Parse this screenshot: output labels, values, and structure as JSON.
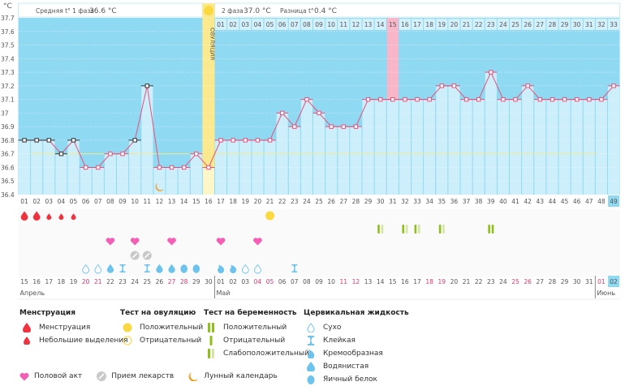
{
  "header": {
    "unit_label": "°C",
    "phase1_label": "Средняя t° 1 фаза",
    "phase1_value": "36.6 °C",
    "phase2_label": "2 фаза",
    "phase2_value": "37.0 °C",
    "diff_label": "Разница t°",
    "diff_value": "0.4 °C",
    "ovulation_label": "ОВУЛЯЦИЯ"
  },
  "colors": {
    "plot_bg": "#8fd9f3",
    "bar_fill": "#cdeefb",
    "line": "#e8507a",
    "cover_line": "#f5e98a",
    "ovulation_col": "#fbe98f",
    "highlight_col": "#f9b6c9",
    "today_col": "#8fd9f3",
    "weekend_red": "#e8356b"
  },
  "chart_data": {
    "type": "line",
    "title": "",
    "xlabel": "",
    "ylabel": "°C",
    "ylim": [
      36.4,
      37.7
    ],
    "y_ticks": [
      "37.7",
      "37.6",
      "37.5",
      "37.4",
      "37.3",
      "37.2",
      "37.1",
      "37",
      "36.9",
      "36.8",
      "36.7",
      "36.6",
      "36.5",
      "36.4"
    ],
    "cycle_days": [
      "01",
      "02",
      "03",
      "04",
      "05",
      "06",
      "07",
      "08",
      "09",
      "10",
      "11",
      "12",
      "13",
      "14",
      "15",
      "16",
      "17",
      "18",
      "19",
      "20",
      "21",
      "22",
      "23",
      "24",
      "25",
      "26",
      "27",
      "28",
      "29",
      "30",
      "31",
      "32",
      "33",
      "34",
      "35",
      "36",
      "37",
      "38",
      "39",
      "40",
      "41",
      "42",
      "43",
      "44",
      "45",
      "46",
      "47",
      "48",
      "49"
    ],
    "phase2_days": [
      "01",
      "02",
      "03",
      "04",
      "05",
      "06",
      "07",
      "08",
      "09",
      "10",
      "11",
      "12",
      "13",
      "14",
      "15",
      "16",
      "17",
      "18",
      "19",
      "20",
      "21",
      "22",
      "23",
      "24",
      "25",
      "26",
      "27",
      "28",
      "29",
      "30",
      "31",
      "32",
      "33"
    ],
    "series": [
      {
        "name": "Базальная температура",
        "values": [
          36.8,
          36.8,
          36.8,
          36.7,
          36.8,
          36.6,
          36.6,
          36.7,
          36.7,
          36.8,
          37.2,
          36.6,
          36.6,
          36.6,
          36.7,
          36.6,
          36.8,
          36.8,
          36.8,
          36.8,
          36.8,
          37.0,
          36.9,
          37.1,
          37.0,
          36.9,
          36.9,
          36.9,
          37.1,
          37.1,
          37.1,
          37.1,
          37.1,
          37.1,
          37.2,
          37.2,
          37.1,
          37.1,
          37.3,
          37.1,
          37.1,
          37.2,
          37.1,
          37.1,
          37.1,
          37.1,
          37.1,
          37.1,
          37.2
        ]
      }
    ],
    "disturbed_days": [
      1,
      2,
      3,
      4,
      5,
      10,
      11
    ],
    "cover_line": 36.7,
    "ovulation_day": 16,
    "highlight_day": 31,
    "today_day": 49,
    "calendar_dates": [
      "15",
      "16",
      "17",
      "18",
      "19",
      "20",
      "21",
      "22",
      "23",
      "24",
      "25",
      "26",
      "27",
      "28",
      "29",
      "30",
      "01",
      "02",
      "03",
      "04",
      "05",
      "06",
      "07",
      "08",
      "09",
      "10",
      "11",
      "12",
      "13",
      "14",
      "15",
      "16",
      "17",
      "18",
      "19",
      "20",
      "21",
      "22",
      "23",
      "24",
      "25",
      "26",
      "27",
      "28",
      "29",
      "30",
      "31",
      "01",
      "02"
    ],
    "red_dates_days": [
      6,
      7,
      13,
      14,
      20,
      21,
      27,
      28,
      34,
      35,
      41,
      42,
      48
    ],
    "months": [
      {
        "label": "Апрель",
        "start_day": 1
      },
      {
        "label": "Май",
        "start_day": 17
      },
      {
        "label": "Июнь",
        "start_day": 48
      }
    ],
    "markers": {
      "menstruation": [
        1,
        2
      ],
      "spotting": [
        3,
        4,
        5
      ],
      "ovulation_test_positive": [
        21
      ],
      "pregnancy_positive": [
        39
      ],
      "pregnancy_weak": [
        30,
        32,
        33,
        35
      ],
      "intercourse": [
        8,
        10,
        13,
        17,
        20
      ],
      "medication": [
        10,
        11
      ],
      "lunar": [
        12
      ],
      "cervical": [
        {
          "day": 6,
          "type": "dry"
        },
        {
          "day": 7,
          "type": "dry"
        },
        {
          "day": 8,
          "type": "watery"
        },
        {
          "day": 9,
          "type": "sticky"
        },
        {
          "day": 11,
          "type": "sticky"
        },
        {
          "day": 12,
          "type": "watery"
        },
        {
          "day": 13,
          "type": "watery"
        },
        {
          "day": 14,
          "type": "eggwhite"
        },
        {
          "day": 15,
          "type": "eggwhite"
        },
        {
          "day": 17,
          "type": "creamy"
        },
        {
          "day": 18,
          "type": "creamy"
        },
        {
          "day": 19,
          "type": "dry"
        },
        {
          "day": 20,
          "type": "dry"
        },
        {
          "day": 23,
          "type": "sticky"
        }
      ]
    }
  },
  "legend": {
    "menstruation": {
      "title": "Менструация",
      "items": [
        "Менструация",
        "Небольшие выделения"
      ]
    },
    "ovulation_test": {
      "title": "Тест на овуляцию",
      "items": [
        "Положительный",
        "Отрицательный"
      ]
    },
    "pregnancy_test": {
      "title": "Тест на беременность",
      "items": [
        "Положительный",
        "Отрицательный",
        "Слабоположительный"
      ]
    },
    "cervical": {
      "title": "Цервикальная жидкость",
      "items": [
        "Сухо",
        "Клейкая",
        "Кремообразная",
        "Водянистая",
        "Яичный белок"
      ]
    },
    "other": [
      "Половой акт",
      "Прием лекарств",
      "Лунный календарь"
    ]
  }
}
